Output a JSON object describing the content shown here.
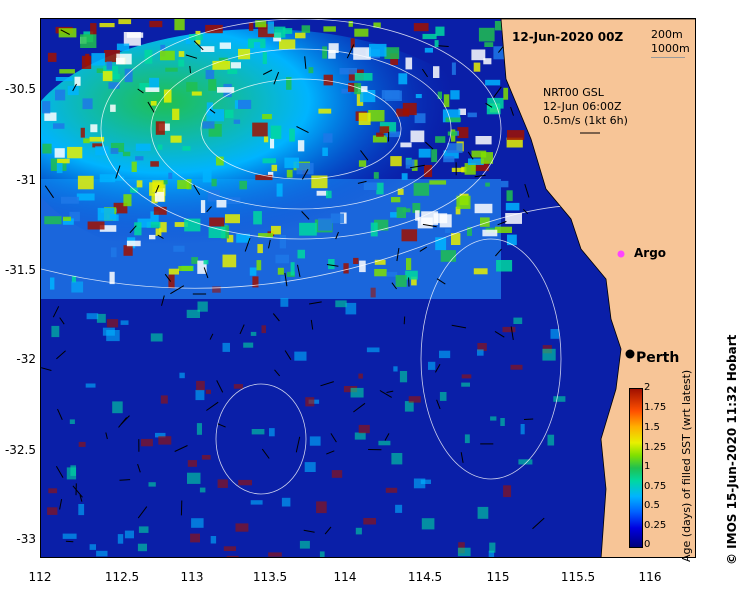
{
  "map": {
    "date_label": "12-Jun-2020 00Z",
    "depth_200": "200m",
    "depth_1000": "1000m",
    "product_line": "NRT00 GSL",
    "product_time": "12-Jun 06:00Z",
    "product_scale": "0.5m/s (1kt 6h)",
    "argo_label": "Argo",
    "perth_label": "Perth",
    "colors": {
      "land": "#f7c597",
      "ocean_deep": "#00007a",
      "argo": "#ff44ff"
    }
  },
  "axes": {
    "y_ticks": [
      "-30.5",
      "-31",
      "-31.5",
      "-32",
      "-32.5",
      "-33"
    ],
    "x_ticks": [
      "112",
      "112.5",
      "113",
      "113.5",
      "114",
      "114.5",
      "115",
      "115.5",
      "116"
    ]
  },
  "colorbar": {
    "title": "Age (days) of filled SST (wrt latest)",
    "ticks": [
      "2",
      "1.75",
      "1.5",
      "1.25",
      "1",
      "0.75",
      "0.5",
      "0.25",
      "0"
    ]
  },
  "credit": "© IMOS 15-Jun-2020 11:32 Hobart"
}
